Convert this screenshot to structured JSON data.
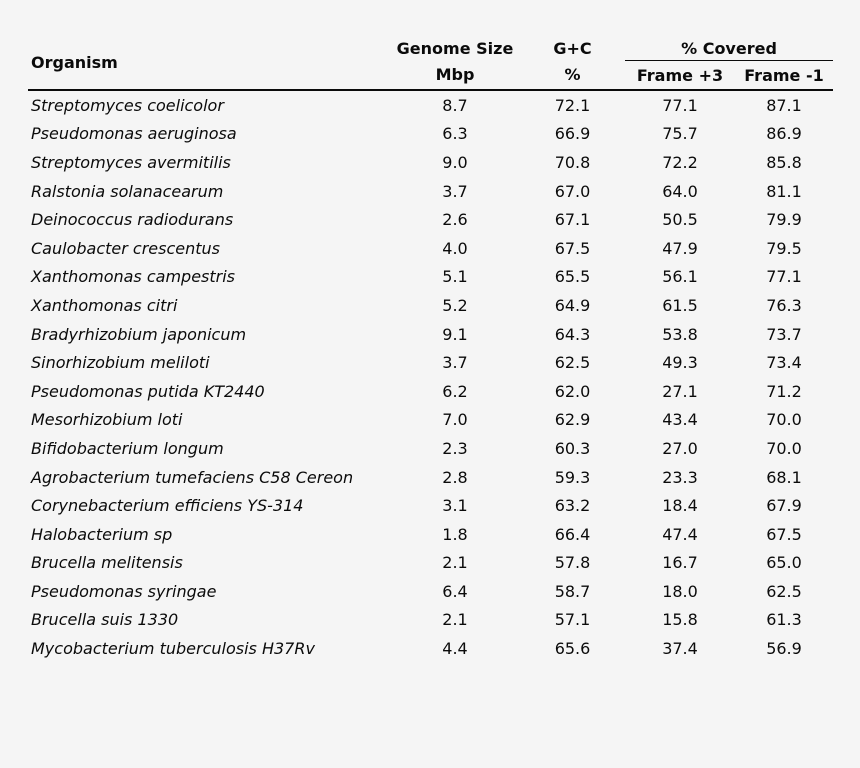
{
  "colors": {
    "background": "#f5f5f5",
    "text": "#0b0b0b",
    "rule": "#0b0b0b"
  },
  "table": {
    "header": {
      "organism": "Organism",
      "genome_size": "Genome Size",
      "genome_size_unit": "Mbp",
      "gc": "G+C",
      "gc_unit": "%",
      "covered_group": "% Covered",
      "frame_plus3": "Frame +3",
      "frame_minus1": "Frame -1"
    },
    "rows": [
      {
        "organism": "Streptomyces coelicolor",
        "genome_size_mbp": "8.7",
        "gc_percent": "72.1",
        "frame_plus3": "77.1",
        "frame_minus1": "87.1"
      },
      {
        "organism": "Pseudomonas aeruginosa",
        "genome_size_mbp": "6.3",
        "gc_percent": "66.9",
        "frame_plus3": "75.7",
        "frame_minus1": "86.9"
      },
      {
        "organism": "Streptomyces avermitilis",
        "genome_size_mbp": "9.0",
        "gc_percent": "70.8",
        "frame_plus3": "72.2",
        "frame_minus1": "85.8"
      },
      {
        "organism": "Ralstonia solanacearum",
        "genome_size_mbp": "3.7",
        "gc_percent": "67.0",
        "frame_plus3": "64.0",
        "frame_minus1": "81.1"
      },
      {
        "organism": "Deinococcus radiodurans",
        "genome_size_mbp": "2.6",
        "gc_percent": "67.1",
        "frame_plus3": "50.5",
        "frame_minus1": "79.9"
      },
      {
        "organism": "Caulobacter crescentus",
        "genome_size_mbp": "4.0",
        "gc_percent": "67.5",
        "frame_plus3": "47.9",
        "frame_minus1": "79.5"
      },
      {
        "organism": "Xanthomonas campestris",
        "genome_size_mbp": "5.1",
        "gc_percent": "65.5",
        "frame_plus3": "56.1",
        "frame_minus1": "77.1"
      },
      {
        "organism": "Xanthomonas citri",
        "genome_size_mbp": "5.2",
        "gc_percent": "64.9",
        "frame_plus3": "61.5",
        "frame_minus1": "76.3"
      },
      {
        "organism": "Bradyrhizobium japonicum",
        "genome_size_mbp": "9.1",
        "gc_percent": "64.3",
        "frame_plus3": "53.8",
        "frame_minus1": "73.7"
      },
      {
        "organism": "Sinorhizobium meliloti",
        "genome_size_mbp": "3.7",
        "gc_percent": "62.5",
        "frame_plus3": "49.3",
        "frame_minus1": "73.4"
      },
      {
        "organism": "Pseudomonas putida KT2440",
        "genome_size_mbp": "6.2",
        "gc_percent": "62.0",
        "frame_plus3": "27.1",
        "frame_minus1": "71.2"
      },
      {
        "organism": "Mesorhizobium loti",
        "genome_size_mbp": "7.0",
        "gc_percent": "62.9",
        "frame_plus3": "43.4",
        "frame_minus1": "70.0"
      },
      {
        "organism": "Bifidobacterium longum",
        "genome_size_mbp": "2.3",
        "gc_percent": "60.3",
        "frame_plus3": "27.0",
        "frame_minus1": "70.0"
      },
      {
        "organism": "Agrobacterium tumefaciens C58 Cereon",
        "genome_size_mbp": "2.8",
        "gc_percent": "59.3",
        "frame_plus3": "23.3",
        "frame_minus1": "68.1"
      },
      {
        "organism": "Corynebacterium efficiens YS-314",
        "genome_size_mbp": "3.1",
        "gc_percent": "63.2",
        "frame_plus3": "18.4",
        "frame_minus1": "67.9"
      },
      {
        "organism": "Halobacterium sp",
        "genome_size_mbp": "1.8",
        "gc_percent": "66.4",
        "frame_plus3": "47.4",
        "frame_minus1": "67.5"
      },
      {
        "organism": "Brucella melitensis",
        "genome_size_mbp": "2.1",
        "gc_percent": "57.8",
        "frame_plus3": "16.7",
        "frame_minus1": "65.0"
      },
      {
        "organism": "Pseudomonas syringae",
        "genome_size_mbp": "6.4",
        "gc_percent": "58.7",
        "frame_plus3": "18.0",
        "frame_minus1": "62.5"
      },
      {
        "organism": "Brucella suis 1330",
        "genome_size_mbp": "2.1",
        "gc_percent": "57.1",
        "frame_plus3": "15.8",
        "frame_minus1": "61.3"
      },
      {
        "organism": "Mycobacterium tuberculosis H37Rv",
        "genome_size_mbp": "4.4",
        "gc_percent": "65.6",
        "frame_plus3": "37.4",
        "frame_minus1": "56.9"
      }
    ]
  }
}
